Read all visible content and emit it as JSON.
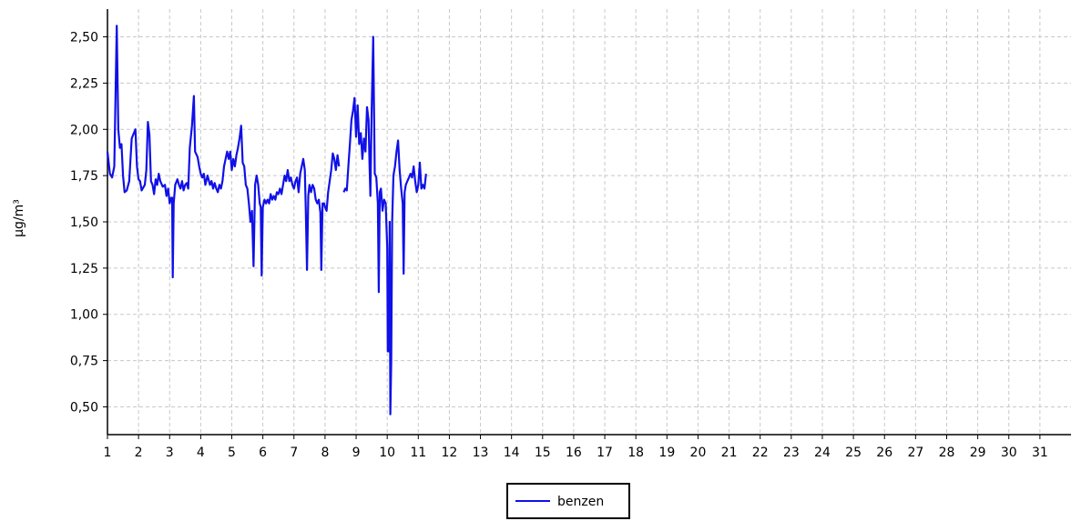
{
  "chart_data": {
    "type": "line",
    "title": "",
    "xlabel": "",
    "ylabel": "µg/m³",
    "xlim": [
      1,
      32
    ],
    "ylim": [
      0.35,
      2.65
    ],
    "x_ticks": [
      1,
      2,
      3,
      4,
      5,
      6,
      7,
      8,
      9,
      10,
      11,
      12,
      13,
      14,
      15,
      16,
      17,
      18,
      19,
      20,
      21,
      22,
      23,
      24,
      25,
      26,
      27,
      28,
      29,
      30,
      31
    ],
    "y_ticks": [
      {
        "value": 0.5,
        "label": "0,50"
      },
      {
        "value": 0.75,
        "label": "0,75"
      },
      {
        "value": 1.0,
        "label": "1,00"
      },
      {
        "value": 1.25,
        "label": "1,25"
      },
      {
        "value": 1.5,
        "label": "1,50"
      },
      {
        "value": 1.75,
        "label": "1,75"
      },
      {
        "value": 2.0,
        "label": "2,00"
      },
      {
        "value": 2.25,
        "label": "2,25"
      },
      {
        "value": 2.5,
        "label": "2,50"
      }
    ],
    "grid": true,
    "legend_position": "bottom-center",
    "series": [
      {
        "name": "benzen",
        "color": "#1010e8",
        "segments": [
          [
            [
              1.0,
              1.88
            ],
            [
              1.08,
              1.76
            ],
            [
              1.15,
              1.74
            ],
            [
              1.22,
              1.8
            ],
            [
              1.3,
              2.56
            ],
            [
              1.35,
              2.0
            ],
            [
              1.4,
              1.9
            ],
            [
              1.45,
              1.92
            ],
            [
              1.5,
              1.75
            ],
            [
              1.55,
              1.66
            ],
            [
              1.62,
              1.67
            ],
            [
              1.7,
              1.72
            ],
            [
              1.78,
              1.95
            ],
            [
              1.85,
              1.98
            ],
            [
              1.9,
              2.0
            ],
            [
              1.95,
              1.8
            ],
            [
              2.0,
              1.73
            ],
            [
              2.05,
              1.72
            ],
            [
              2.1,
              1.67
            ],
            [
              2.2,
              1.7
            ],
            [
              2.25,
              1.78
            ],
            [
              2.3,
              2.04
            ],
            [
              2.35,
              1.97
            ],
            [
              2.4,
              1.72
            ],
            [
              2.45,
              1.7
            ],
            [
              2.5,
              1.65
            ],
            [
              2.55,
              1.73
            ],
            [
              2.6,
              1.7
            ],
            [
              2.65,
              1.76
            ],
            [
              2.7,
              1.72
            ],
            [
              2.78,
              1.69
            ],
            [
              2.85,
              1.7
            ],
            [
              2.9,
              1.64
            ],
            [
              2.95,
              1.68
            ],
            [
              3.0,
              1.6
            ],
            [
              3.05,
              1.63
            ],
            [
              3.08,
              1.63
            ],
            [
              3.1,
              1.2
            ],
            [
              3.13,
              1.6
            ],
            [
              3.18,
              1.7
            ],
            [
              3.25,
              1.73
            ],
            [
              3.3,
              1.7
            ],
            [
              3.35,
              1.68
            ],
            [
              3.4,
              1.72
            ],
            [
              3.45,
              1.67
            ],
            [
              3.5,
              1.7
            ],
            [
              3.55,
              1.71
            ],
            [
              3.6,
              1.68
            ],
            [
              3.65,
              1.9
            ],
            [
              3.72,
              2.02
            ],
            [
              3.78,
              2.18
            ],
            [
              3.82,
              1.88
            ],
            [
              3.9,
              1.85
            ],
            [
              3.95,
              1.8
            ],
            [
              4.0,
              1.76
            ],
            [
              4.05,
              1.74
            ],
            [
              4.1,
              1.76
            ],
            [
              4.15,
              1.7
            ],
            [
              4.22,
              1.75
            ],
            [
              4.3,
              1.7
            ],
            [
              4.35,
              1.72
            ],
            [
              4.4,
              1.68
            ],
            [
              4.45,
              1.71
            ],
            [
              4.5,
              1.68
            ],
            [
              4.55,
              1.66
            ],
            [
              4.6,
              1.7
            ],
            [
              4.65,
              1.68
            ],
            [
              4.7,
              1.72
            ],
            [
              4.75,
              1.8
            ],
            [
              4.8,
              1.84
            ],
            [
              4.85,
              1.88
            ],
            [
              4.9,
              1.84
            ],
            [
              4.95,
              1.88
            ],
            [
              5.0,
              1.78
            ],
            [
              5.05,
              1.84
            ],
            [
              5.1,
              1.8
            ],
            [
              5.15,
              1.86
            ],
            [
              5.2,
              1.9
            ],
            [
              5.25,
              1.95
            ],
            [
              5.3,
              2.02
            ],
            [
              5.35,
              1.82
            ],
            [
              5.4,
              1.8
            ],
            [
              5.45,
              1.7
            ],
            [
              5.5,
              1.68
            ],
            [
              5.55,
              1.6
            ],
            [
              5.6,
              1.5
            ],
            [
              5.65,
              1.56
            ],
            [
              5.7,
              1.26
            ],
            [
              5.75,
              1.7
            ],
            [
              5.8,
              1.75
            ],
            [
              5.85,
              1.7
            ],
            [
              5.9,
              1.6
            ],
            [
              5.93,
              1.58
            ],
            [
              5.96,
              1.21
            ],
            [
              6.0,
              1.58
            ],
            [
              6.05,
              1.62
            ],
            [
              6.1,
              1.6
            ],
            [
              6.15,
              1.62
            ],
            [
              6.2,
              1.6
            ],
            [
              6.25,
              1.65
            ],
            [
              6.3,
              1.62
            ],
            [
              6.35,
              1.64
            ],
            [
              6.4,
              1.62
            ],
            [
              6.45,
              1.66
            ],
            [
              6.5,
              1.65
            ],
            [
              6.55,
              1.68
            ],
            [
              6.6,
              1.65
            ],
            [
              6.65,
              1.7
            ],
            [
              6.7,
              1.75
            ],
            [
              6.75,
              1.72
            ],
            [
              6.8,
              1.78
            ],
            [
              6.85,
              1.72
            ],
            [
              6.9,
              1.74
            ],
            [
              6.95,
              1.7
            ],
            [
              7.0,
              1.68
            ],
            [
              7.05,
              1.72
            ],
            [
              7.1,
              1.74
            ],
            [
              7.15,
              1.66
            ],
            [
              7.2,
              1.76
            ],
            [
              7.25,
              1.8
            ],
            [
              7.3,
              1.84
            ],
            [
              7.35,
              1.78
            ],
            [
              7.38,
              1.58
            ],
            [
              7.42,
              1.24
            ],
            [
              7.46,
              1.64
            ],
            [
              7.5,
              1.7
            ],
            [
              7.55,
              1.66
            ],
            [
              7.6,
              1.7
            ],
            [
              7.65,
              1.68
            ],
            [
              7.7,
              1.62
            ],
            [
              7.75,
              1.6
            ],
            [
              7.8,
              1.62
            ],
            [
              7.85,
              1.55
            ],
            [
              7.88,
              1.24
            ],
            [
              7.92,
              1.6
            ],
            [
              7.97,
              1.6
            ],
            [
              8.0,
              1.58
            ],
            [
              8.05,
              1.56
            ],
            [
              8.1,
              1.66
            ],
            [
              8.15,
              1.72
            ],
            [
              8.2,
              1.78
            ],
            [
              8.25,
              1.87
            ],
            [
              8.3,
              1.84
            ],
            [
              8.35,
              1.78
            ],
            [
              8.4,
              1.86
            ],
            [
              8.45,
              1.8
            ]
          ],
          [
            [
              8.6,
              1.66
            ],
            [
              8.65,
              1.68
            ],
            [
              8.7,
              1.67
            ],
            [
              8.75,
              1.8
            ],
            [
              8.8,
              1.92
            ],
            [
              8.85,
              2.05
            ],
            [
              8.9,
              2.1
            ],
            [
              8.95,
              2.17
            ],
            [
              9.0,
              1.96
            ],
            [
              9.05,
              2.13
            ],
            [
              9.1,
              1.92
            ],
            [
              9.15,
              1.98
            ],
            [
              9.2,
              1.84
            ],
            [
              9.25,
              1.95
            ],
            [
              9.3,
              1.88
            ],
            [
              9.35,
              2.12
            ],
            [
              9.4,
              2.05
            ],
            [
              9.43,
              1.82
            ],
            [
              9.46,
              1.64
            ],
            [
              9.5,
              2.1
            ],
            [
              9.55,
              2.5
            ],
            [
              9.6,
              1.76
            ],
            [
              9.65,
              1.74
            ],
            [
              9.7,
              1.6
            ],
            [
              9.73,
              1.12
            ],
            [
              9.76,
              1.66
            ],
            [
              9.8,
              1.68
            ],
            [
              9.85,
              1.56
            ],
            [
              9.9,
              1.62
            ],
            [
              9.95,
              1.6
            ],
            [
              10.0,
              1.36
            ],
            [
              10.02,
              0.8
            ],
            [
              10.05,
              0.8
            ],
            [
              10.08,
              1.5
            ],
            [
              10.1,
              0.46
            ],
            [
              10.13,
              0.75
            ],
            [
              10.16,
              1.5
            ],
            [
              10.2,
              1.75
            ],
            [
              10.25,
              1.8
            ],
            [
              10.3,
              1.88
            ],
            [
              10.35,
              1.94
            ],
            [
              10.4,
              1.78
            ],
            [
              10.45,
              1.68
            ],
            [
              10.5,
              1.6
            ],
            [
              10.53,
              1.22
            ],
            [
              10.56,
              1.66
            ],
            [
              10.6,
              1.7
            ],
            [
              10.65,
              1.72
            ],
            [
              10.7,
              1.74
            ],
            [
              10.75,
              1.76
            ],
            [
              10.8,
              1.74
            ],
            [
              10.85,
              1.8
            ],
            [
              10.9,
              1.72
            ],
            [
              10.95,
              1.66
            ],
            [
              11.0,
              1.7
            ],
            [
              11.05,
              1.82
            ],
            [
              11.1,
              1.68
            ],
            [
              11.15,
              1.7
            ],
            [
              11.2,
              1.68
            ],
            [
              11.25,
              1.76
            ]
          ]
        ]
      }
    ]
  }
}
